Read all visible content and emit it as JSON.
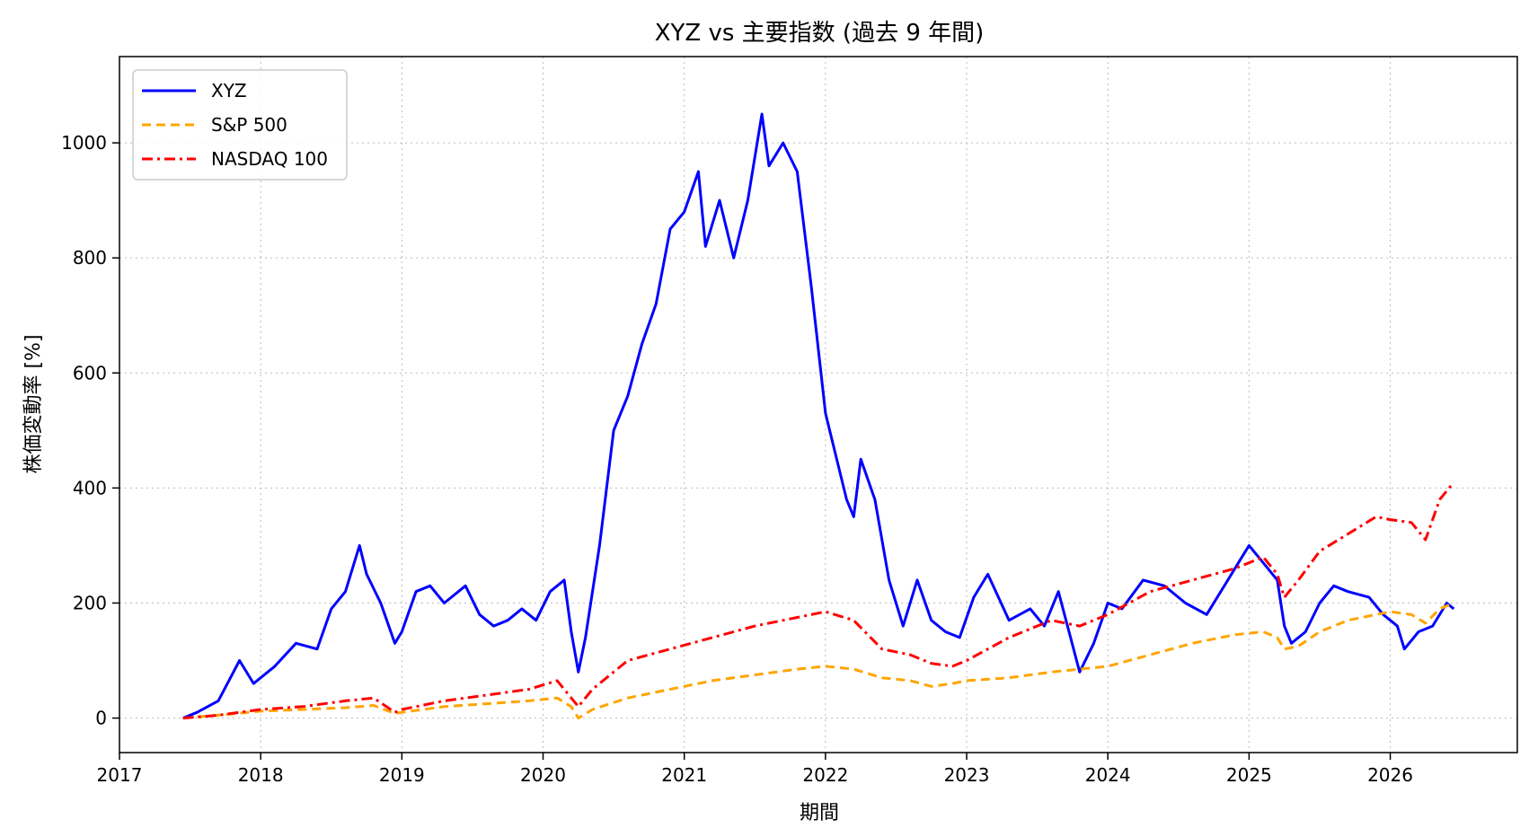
{
  "chart_data": {
    "type": "line",
    "title": "XYZ vs 主要指数 (過去 9 年間)",
    "xlabel": "期間",
    "ylabel": "株価変動率 [%]",
    "xlim": [
      2017.0,
      2026.9
    ],
    "ylim": [
      -60,
      1150
    ],
    "x_ticks": [
      2017,
      2018,
      2019,
      2020,
      2021,
      2022,
      2023,
      2024,
      2025,
      2026
    ],
    "x_tick_labels": [
      "2017",
      "2018",
      "2019",
      "2020",
      "2021",
      "2022",
      "2023",
      "2024",
      "2025",
      "2026"
    ],
    "y_ticks": [
      0,
      200,
      400,
      600,
      800,
      1000
    ],
    "y_tick_labels": [
      "0",
      "200",
      "400",
      "600",
      "800",
      "1000"
    ],
    "grid": true,
    "legend_position": "top-left",
    "series": [
      {
        "name": "XYZ",
        "color": "#0000ff",
        "style": "solid",
        "x": [
          2017.45,
          2017.55,
          2017.7,
          2017.85,
          2017.95,
          2018.1,
          2018.25,
          2018.4,
          2018.5,
          2018.6,
          2018.7,
          2018.75,
          2018.85,
          2018.95,
          2019.0,
          2019.1,
          2019.2,
          2019.3,
          2019.45,
          2019.55,
          2019.65,
          2019.75,
          2019.85,
          2019.95,
          2020.05,
          2020.15,
          2020.2,
          2020.25,
          2020.3,
          2020.4,
          2020.5,
          2020.6,
          2020.7,
          2020.8,
          2020.9,
          2021.0,
          2021.1,
          2021.15,
          2021.25,
          2021.35,
          2021.45,
          2021.55,
          2021.6,
          2021.7,
          2021.8,
          2021.9,
          2022.0,
          2022.05,
          2022.15,
          2022.2,
          2022.25,
          2022.35,
          2022.45,
          2022.55,
          2022.65,
          2022.75,
          2022.85,
          2022.95,
          2023.05,
          2023.15,
          2023.3,
          2023.45,
          2023.55,
          2023.65,
          2023.8,
          2023.9,
          2024.0,
          2024.1,
          2024.25,
          2024.4,
          2024.55,
          2024.7,
          2024.85,
          2024.95,
          2025.0,
          2025.1,
          2025.2,
          2025.25,
          2025.3,
          2025.4,
          2025.5,
          2025.6,
          2025.7,
          2025.85,
          2025.95,
          2026.05,
          2026.1,
          2026.2,
          2026.3,
          2026.4,
          2026.45
        ],
        "y": [
          0,
          10,
          30,
          100,
          60,
          90,
          130,
          120,
          190,
          220,
          300,
          250,
          200,
          130,
          150,
          220,
          230,
          200,
          230,
          180,
          160,
          170,
          190,
          170,
          220,
          240,
          150,
          80,
          140,
          300,
          500,
          560,
          650,
          720,
          850,
          880,
          950,
          820,
          900,
          800,
          900,
          1050,
          960,
          1000,
          950,
          750,
          530,
          480,
          380,
          350,
          450,
          380,
          240,
          160,
          240,
          170,
          150,
          140,
          210,
          250,
          170,
          190,
          160,
          220,
          80,
          130,
          200,
          190,
          240,
          230,
          200,
          180,
          240,
          280,
          300,
          270,
          240,
          160,
          130,
          150,
          200,
          230,
          220,
          210,
          180,
          160,
          120,
          150,
          160,
          200,
          190
        ]
      },
      {
        "name": "S&P 500",
        "color": "#ffa500",
        "style": "dashed",
        "x": [
          2017.45,
          2017.7,
          2018.0,
          2018.3,
          2018.6,
          2018.8,
          2018.95,
          2019.0,
          2019.3,
          2019.6,
          2019.9,
          2020.1,
          2020.2,
          2020.25,
          2020.35,
          2020.6,
          2020.9,
          2021.2,
          2021.5,
          2021.8,
          2022.0,
          2022.2,
          2022.4,
          2022.6,
          2022.75,
          2022.9,
          2023.0,
          2023.3,
          2023.6,
          2023.8,
          2024.0,
          2024.3,
          2024.6,
          2024.9,
          2025.1,
          2025.2,
          2025.25,
          2025.35,
          2025.5,
          2025.7,
          2025.9,
          2026.0,
          2026.15,
          2026.25,
          2026.35,
          2026.45
        ],
        "y": [
          0,
          5,
          12,
          15,
          18,
          22,
          8,
          10,
          20,
          25,
          30,
          35,
          20,
          0,
          15,
          35,
          50,
          65,
          75,
          85,
          90,
          85,
          70,
          65,
          55,
          60,
          65,
          70,
          80,
          85,
          90,
          110,
          130,
          145,
          150,
          140,
          120,
          125,
          150,
          170,
          180,
          185,
          180,
          165,
          190,
          200
        ]
      },
      {
        "name": "NASDAQ 100",
        "color": "#ff0000",
        "style": "dashdot",
        "x": [
          2017.45,
          2017.7,
          2018.0,
          2018.3,
          2018.6,
          2018.8,
          2018.95,
          2019.0,
          2019.3,
          2019.6,
          2019.9,
          2020.1,
          2020.2,
          2020.25,
          2020.35,
          2020.6,
          2020.9,
          2021.2,
          2021.5,
          2021.8,
          2022.0,
          2022.2,
          2022.4,
          2022.6,
          2022.75,
          2022.9,
          2023.0,
          2023.3,
          2023.6,
          2023.8,
          2024.0,
          2024.3,
          2024.6,
          2024.9,
          2025.1,
          2025.2,
          2025.25,
          2025.35,
          2025.5,
          2025.7,
          2025.9,
          2026.0,
          2026.15,
          2026.25,
          2026.35,
          2026.45
        ],
        "y": [
          0,
          5,
          15,
          20,
          30,
          35,
          10,
          15,
          30,
          40,
          50,
          65,
          35,
          20,
          50,
          100,
          120,
          140,
          160,
          175,
          185,
          170,
          120,
          110,
          95,
          90,
          100,
          140,
          170,
          160,
          180,
          220,
          240,
          260,
          280,
          250,
          210,
          240,
          290,
          320,
          350,
          345,
          340,
          310,
          380,
          410
        ]
      }
    ]
  }
}
